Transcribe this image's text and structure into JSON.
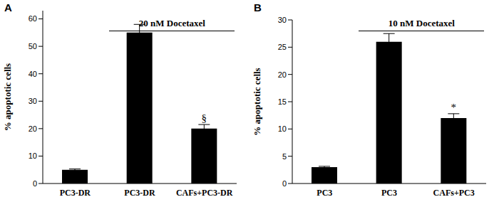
{
  "chart_data": [
    {
      "type": "bar",
      "panel_label": "A",
      "categories": [
        "PC3-DR",
        "PC3-DR",
        "CAFs+PC3-DR"
      ],
      "values": [
        5,
        55,
        20
      ],
      "errors": [
        0.3,
        3,
        1.5
      ],
      "color": "#000000",
      "ylim": [
        0,
        63
      ],
      "yticks": [
        0,
        10,
        20,
        30,
        40,
        50,
        60
      ],
      "y_label": "% apoptotic cells",
      "annotations": [
        null,
        null,
        "§"
      ],
      "bracket": {
        "text": "20 nM Docetaxel",
        "from": 1,
        "to": 2
      }
    },
    {
      "type": "bar",
      "panel_label": "B",
      "categories": [
        "PC3",
        "PC3",
        "CAFs+PC3"
      ],
      "values": [
        3,
        26,
        12
      ],
      "errors": [
        0.15,
        1.5,
        0.8
      ],
      "color": "#000000",
      "ylim": [
        0,
        30
      ],
      "yticks": [
        0,
        5,
        10,
        15,
        20,
        25,
        30
      ],
      "y_label": "% apoptotic cells",
      "annotations": [
        null,
        null,
        "*"
      ],
      "bracket": {
        "text": "10 nM Docetaxel",
        "from": 1,
        "to": 2
      }
    }
  ]
}
